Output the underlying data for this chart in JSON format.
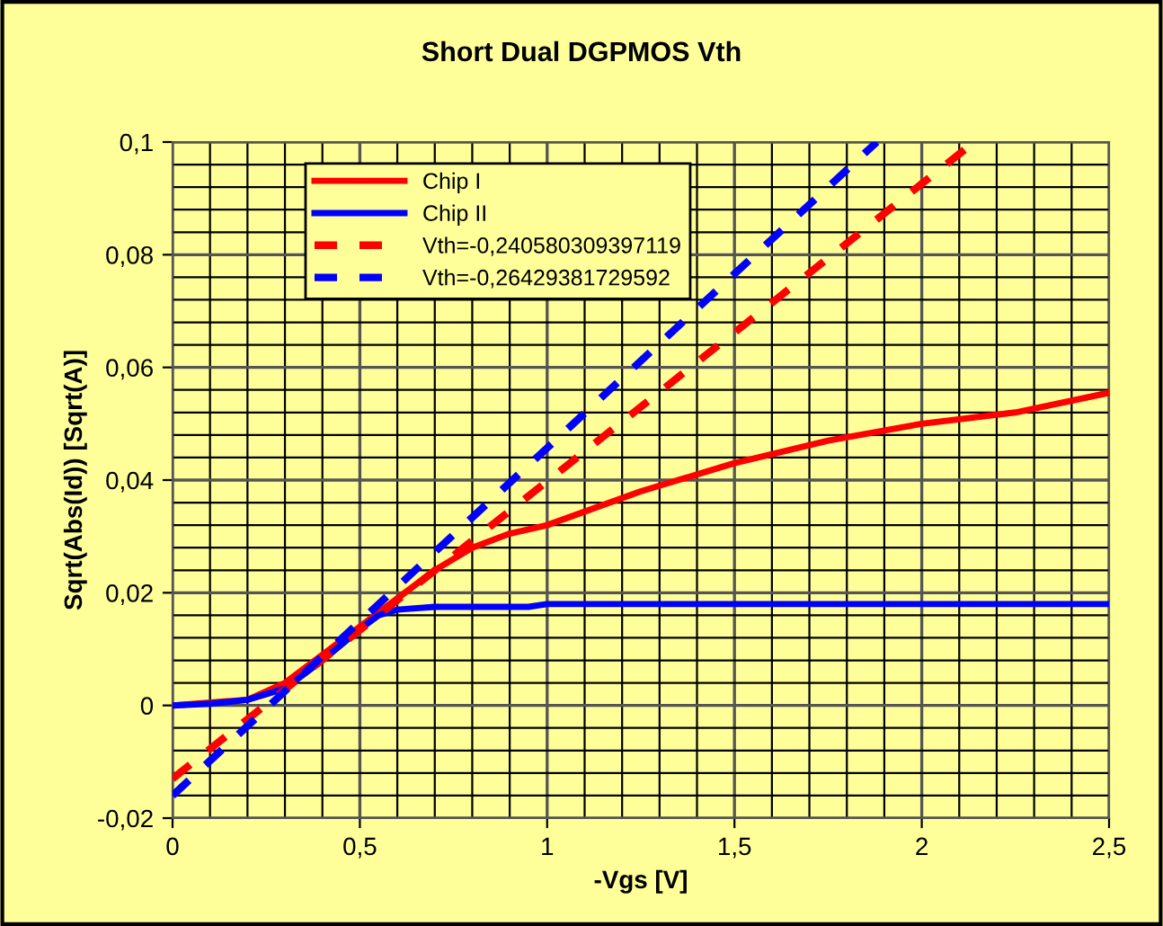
{
  "chart_data": {
    "type": "line",
    "title": "Short Dual DGPMOS Vth",
    "xlabel": "-Vgs [V]",
    "ylabel": "Sqrt(Abs(Id)) [Sqrt(A)]",
    "xlim": [
      0,
      2.5
    ],
    "xticks": [
      {
        "value": 0,
        "label": "0"
      },
      {
        "value": 0.5,
        "label": "0,5"
      },
      {
        "value": 1,
        "label": "1"
      },
      {
        "value": 1.5,
        "label": "1,5"
      },
      {
        "value": 2,
        "label": "2"
      },
      {
        "value": 2.5,
        "label": "2,5"
      }
    ],
    "ylim": [
      -0.02,
      0.1
    ],
    "yticks": [
      {
        "value": -0.02,
        "label": "-0,02"
      },
      {
        "value": 0,
        "label": "0"
      },
      {
        "value": 0.02,
        "label": "0,02"
      },
      {
        "value": 0.04,
        "label": "0,04"
      },
      {
        "value": 0.06,
        "label": "0,06"
      },
      {
        "value": 0.08,
        "label": "0,08"
      },
      {
        "value": 0.1,
        "label": "0,1"
      }
    ],
    "grid": true,
    "legend": "top left",
    "marker": "none",
    "series": [
      {
        "name": "Chip I",
        "color": "#ff0000",
        "line_style": "solid",
        "x": [
          0,
          0.2,
          0.3,
          0.4,
          0.5,
          0.6,
          0.7,
          0.8,
          0.9,
          1.0,
          1.25,
          1.5,
          1.75,
          2.0,
          2.25,
          2.5
        ],
        "values": [
          0,
          0.001,
          0.004,
          0.009,
          0.014,
          0.019,
          0.024,
          0.028,
          0.0305,
          0.032,
          0.038,
          0.043,
          0.047,
          0.05,
          0.052,
          0.0555
        ]
      },
      {
        "name": "Chip II",
        "color": "#0000ff",
        "line_style": "solid",
        "x": [
          0,
          0.1,
          0.2,
          0.3,
          0.4,
          0.5,
          0.55,
          0.6,
          0.7,
          0.95,
          1.0,
          2.5
        ],
        "values": [
          0,
          0.0003,
          0.001,
          0.003,
          0.008,
          0.0135,
          0.016,
          0.017,
          0.0175,
          0.0175,
          0.018,
          0.018
        ]
      },
      {
        "name": "Vth=-0,240580309397119",
        "color": "#ff0000",
        "line_style": "dashed",
        "x": [
          0,
          0.5,
          1,
          1.5,
          2,
          2.14
        ],
        "values": [
          -0.013,
          0.0134,
          0.0398,
          0.0662,
          0.0926,
          0.1
        ]
      },
      {
        "name": "Vth=-0,26429381729592",
        "color": "#0000ff",
        "line_style": "dashed",
        "x": [
          0,
          0.5,
          1,
          1.5,
          1.88
        ],
        "values": [
          -0.016,
          0.0149,
          0.0457,
          0.0766,
          0.1
        ]
      }
    ]
  }
}
